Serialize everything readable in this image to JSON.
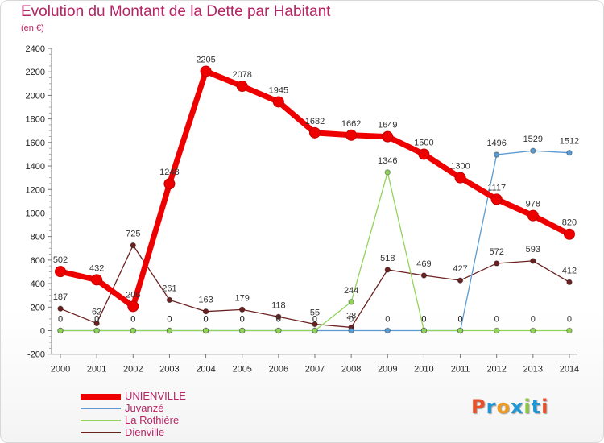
{
  "title": "Evolution du Montant de la Dette par Habitant",
  "subtitle": "(en €)",
  "chart_data": {
    "type": "line",
    "x": [
      "2000",
      "2001",
      "2002",
      "2003",
      "2004",
      "2005",
      "2006",
      "2007",
      "2008",
      "2009",
      "2010",
      "2011",
      "2012",
      "2013",
      "2014"
    ],
    "yticks": [
      -200,
      0,
      200,
      400,
      600,
      800,
      1000,
      1200,
      1400,
      1600,
      1800,
      2000,
      2200,
      2400
    ],
    "ylim": [
      -200,
      2400
    ],
    "series": [
      {
        "name": "UNIENVILLE",
        "color": "#ee0000",
        "values": [
          502,
          432,
          206,
          1248,
          2205,
          2078,
          1945,
          1682,
          1662,
          1649,
          1500,
          1300,
          1117,
          978,
          820
        ]
      },
      {
        "name": "Juvanzé",
        "color": "#5b9bd1",
        "values": [
          0,
          0,
          0,
          0,
          0,
          0,
          0,
          0,
          0,
          0,
          0,
          0,
          1496,
          1529,
          1512
        ]
      },
      {
        "name": "La Rothière",
        "color": "#92d35a",
        "values": [
          0,
          0,
          0,
          0,
          0,
          0,
          0,
          0,
          244,
          1346,
          0,
          0,
          0,
          0,
          0
        ]
      },
      {
        "name": "Dienville",
        "color": "#6b2121",
        "values": [
          187,
          62,
          725,
          261,
          163,
          179,
          118,
          55,
          28,
          518,
          469,
          427,
          572,
          593,
          412
        ]
      }
    ],
    "grid": false,
    "legend": "bottom-left"
  },
  "logo": {
    "letters": [
      "P",
      "r",
      "o",
      "x",
      "i",
      "t",
      "i"
    ],
    "colors": [
      "#e8502a",
      "#1f97d4",
      "#ef9b1d",
      "#1f97d4",
      "#8cc63e",
      "#1f97d4",
      "#e8502a"
    ]
  }
}
